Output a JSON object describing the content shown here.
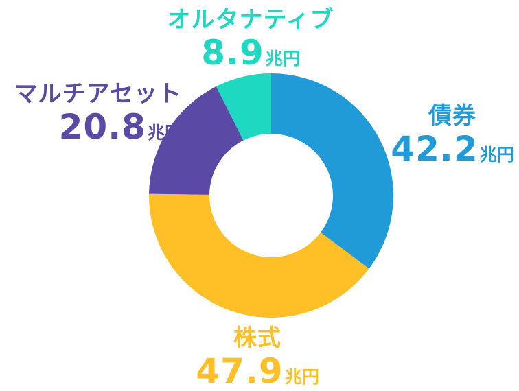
{
  "chart_data": {
    "type": "pie",
    "variant": "donut",
    "unit": "兆円",
    "segments": [
      {
        "name": "債券",
        "value": 42.2,
        "value_label": "42.2",
        "color": "#219BD7"
      },
      {
        "name": "株式",
        "value": 47.9,
        "value_label": "47.9",
        "color": "#FEBF27"
      },
      {
        "name": "マルチアセット",
        "value": 20.8,
        "value_label": "20.8",
        "color": "#5A4AA6"
      },
      {
        "name": "オルタナティブ",
        "value": 8.9,
        "value_label": "8.9",
        "color": "#1ED8C1"
      }
    ]
  }
}
